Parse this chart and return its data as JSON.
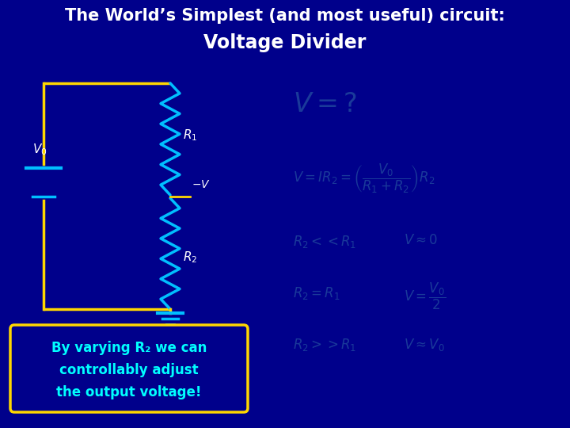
{
  "bg_color": "#00008B",
  "title_line1": "The World’s Simplest (and most useful) circuit:",
  "title_line2": "Voltage Divider",
  "title_color": "#FFFFFF",
  "wire_color": "#FFD700",
  "resistor_color": "#00BFFF",
  "label_color": "#FFFFFF",
  "eq_color": "#1A3A9A",
  "note_bg": "#00008B",
  "note_border": "#FFD700",
  "note_text_color": "#00FFFF",
  "note_text": [
    "By varying R₂ we can",
    "controllably adjust",
    "the output voltage!"
  ],
  "bat_color": "#00BFFF",
  "ground_color": "#00BFFF"
}
